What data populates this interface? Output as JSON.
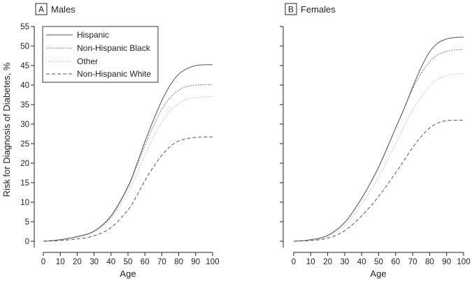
{
  "chart_data": [
    {
      "type": "line",
      "panel_letter": "A",
      "title": "Males",
      "xlabel": "Age",
      "ylabel": "Risk for Diagnosis of Diabetes, %",
      "xlim": [
        0,
        100
      ],
      "ylim": [
        0,
        55
      ],
      "x_ticks": [
        0,
        10,
        20,
        30,
        40,
        50,
        60,
        70,
        80,
        90,
        100
      ],
      "y_ticks": [
        0,
        5,
        10,
        15,
        20,
        25,
        30,
        35,
        40,
        45,
        50,
        55
      ],
      "legend_position": "top-left",
      "x": [
        0,
        10,
        20,
        30,
        40,
        50,
        55,
        60,
        65,
        70,
        75,
        80,
        85,
        90,
        95,
        100
      ],
      "series": [
        {
          "name": "Hispanic",
          "style": "solid",
          "values": [
            0,
            0.4,
            1.2,
            2.6,
            6.5,
            14.0,
            19.5,
            25.5,
            31.0,
            36.0,
            40.0,
            42.8,
            44.2,
            45.0,
            45.2,
            45.2
          ]
        },
        {
          "name": "Non-Hispanic Black",
          "style": "dotted",
          "values": [
            0,
            0.4,
            1.2,
            2.6,
            6.3,
            13.8,
            19.0,
            24.5,
            29.5,
            33.8,
            36.8,
            38.7,
            39.6,
            40.0,
            40.1,
            40.1
          ]
        },
        {
          "name": "Other",
          "style": "dotted-light",
          "values": [
            0,
            0.3,
            1.0,
            2.3,
            5.8,
            12.5,
            17.0,
            22.0,
            26.5,
            30.5,
            33.5,
            35.3,
            36.3,
            36.8,
            37.0,
            37.1
          ]
        },
        {
          "name": "Non-Hispanic White",
          "style": "dashed",
          "values": [
            0,
            0.2,
            0.6,
            1.4,
            3.5,
            8.0,
            11.5,
            15.5,
            19.0,
            22.0,
            24.3,
            25.7,
            26.3,
            26.6,
            26.7,
            26.7
          ]
        }
      ]
    },
    {
      "type": "line",
      "panel_letter": "B",
      "title": "Females",
      "xlabel": "Age",
      "ylabel": "",
      "xlim": [
        0,
        100
      ],
      "ylim": [
        0,
        55
      ],
      "x_ticks": [
        0,
        10,
        20,
        30,
        40,
        50,
        60,
        70,
        80,
        90,
        100
      ],
      "y_ticks": [
        0,
        5,
        10,
        15,
        20,
        25,
        30,
        35,
        40,
        45,
        50,
        55
      ],
      "x": [
        0,
        10,
        20,
        30,
        40,
        50,
        60,
        65,
        70,
        75,
        80,
        85,
        90,
        95,
        100
      ],
      "series": [
        {
          "name": "Hispanic",
          "style": "solid",
          "values": [
            0,
            0.4,
            1.5,
            4.8,
            11.0,
            19.0,
            29.0,
            34.0,
            39.5,
            44.5,
            48.5,
            50.8,
            51.8,
            52.2,
            52.3
          ]
        },
        {
          "name": "Non-Hispanic Black",
          "style": "dotted",
          "values": [
            0,
            0.4,
            1.5,
            4.8,
            11.0,
            19.0,
            29.0,
            34.0,
            39.0,
            43.0,
            46.0,
            47.8,
            48.6,
            49.0,
            49.1
          ]
        },
        {
          "name": "Other",
          "style": "dotted-light",
          "values": [
            0,
            0.3,
            1.2,
            4.0,
            9.5,
            16.5,
            25.0,
            29.5,
            33.5,
            37.0,
            39.7,
            41.5,
            42.4,
            42.8,
            43.0
          ]
        },
        {
          "name": "Non-Hispanic White",
          "style": "dashed",
          "values": [
            0,
            0.2,
            0.8,
            2.7,
            6.5,
            11.5,
            17.5,
            20.7,
            24.0,
            26.8,
            29.0,
            30.3,
            30.9,
            31.0,
            31.0
          ]
        }
      ]
    }
  ]
}
